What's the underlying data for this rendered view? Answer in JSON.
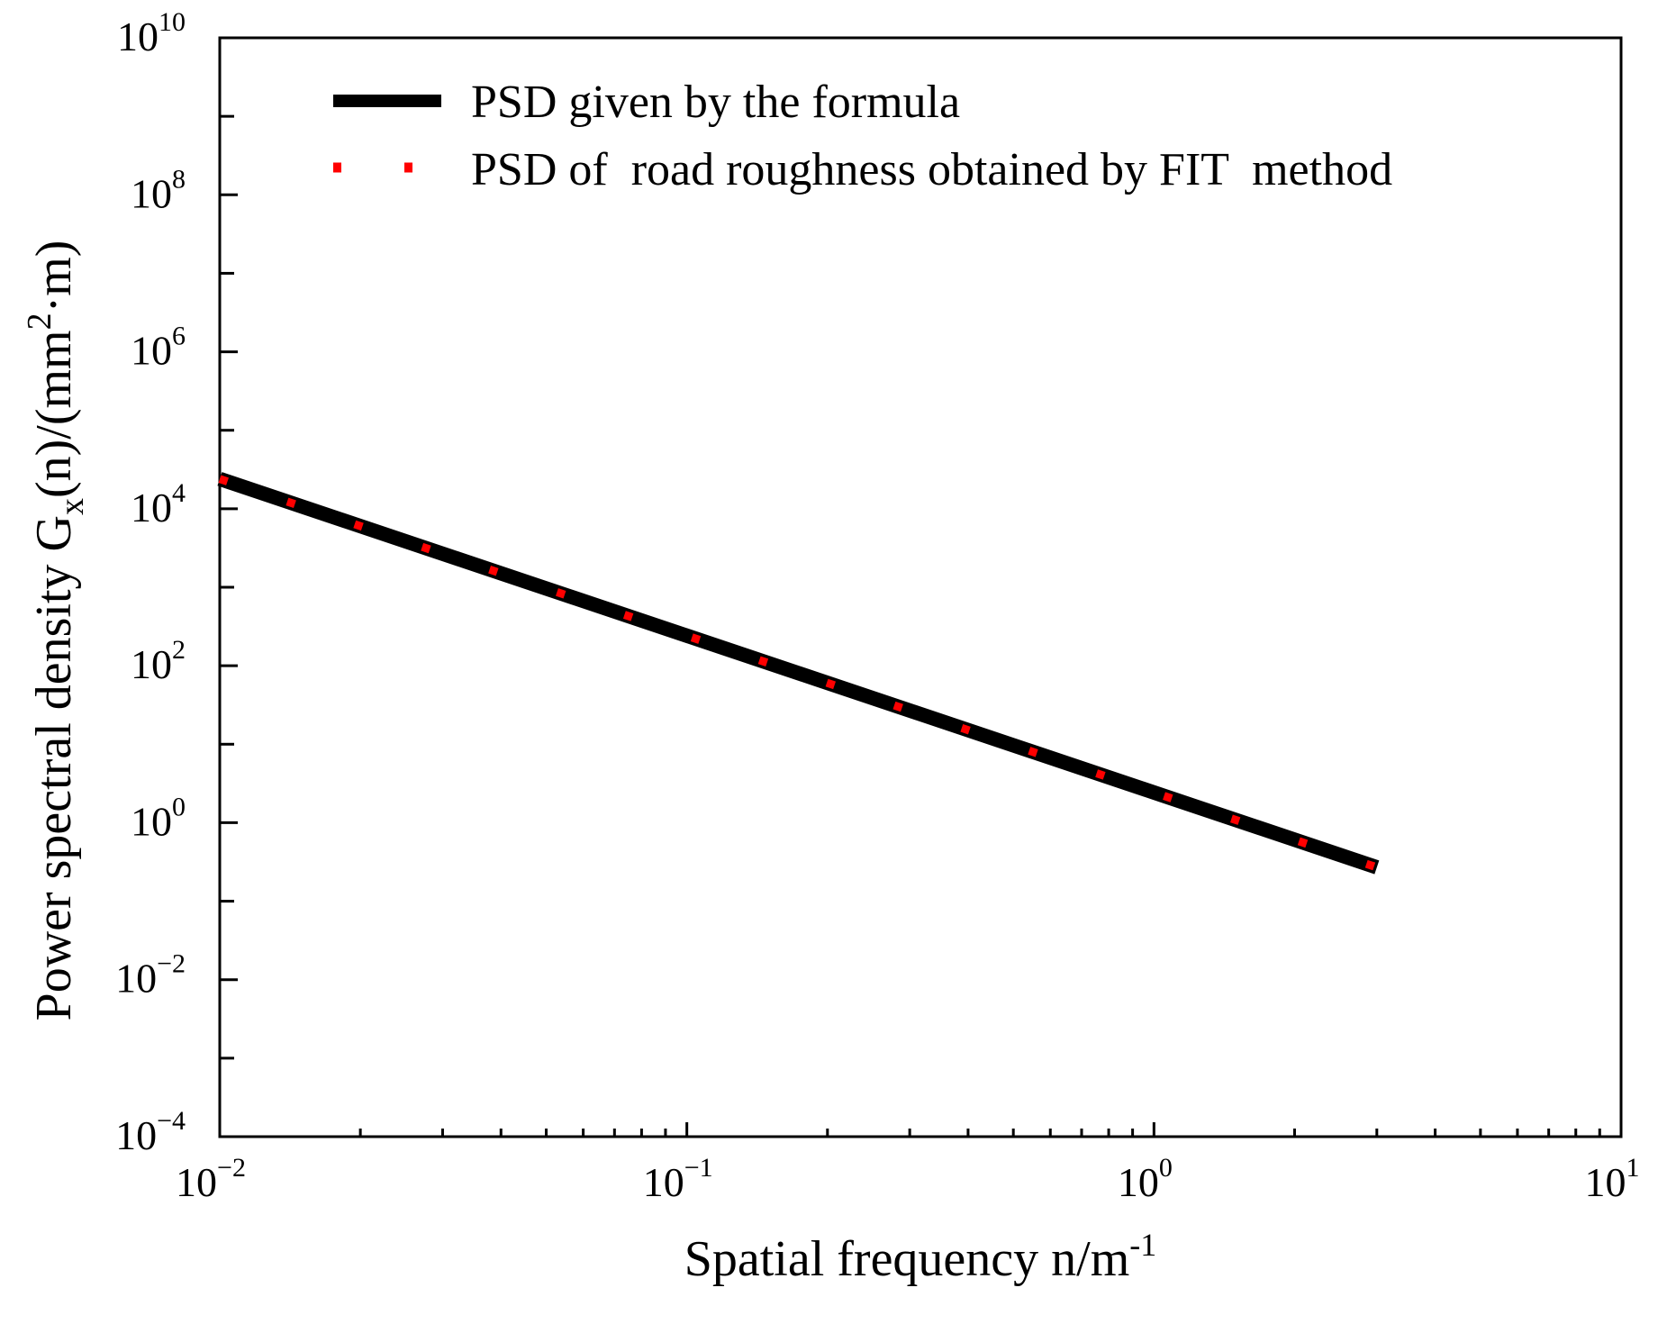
{
  "chart_data": {
    "type": "line",
    "xscale": "log",
    "yscale": "log",
    "xlim": [
      0.01,
      10
    ],
    "ylim": [
      0.0001,
      10000000000
    ],
    "x_ticks": [
      {
        "base": "10",
        "exp": "−2",
        "value": 0.01
      },
      {
        "base": "10",
        "exp": "−1",
        "value": 0.1
      },
      {
        "base": "10",
        "exp": "0",
        "value": 1
      },
      {
        "base": "10",
        "exp": "1",
        "value": 10
      }
    ],
    "y_ticks": [
      {
        "base": "10",
        "exp": "−4",
        "value": 0.0001
      },
      {
        "base": "10",
        "exp": "−2",
        "value": 0.01
      },
      {
        "base": "10",
        "exp": "0",
        "value": 1
      },
      {
        "base": "10",
        "exp": "2",
        "value": 100
      },
      {
        "base": "10",
        "exp": "4",
        "value": 10000
      },
      {
        "base": "10",
        "exp": "6",
        "value": 1000000
      },
      {
        "base": "10",
        "exp": "8",
        "value": 100000000
      },
      {
        "base": "10",
        "exp": "10",
        "value": 10000000000
      }
    ],
    "xlabel": {
      "main": "Spatial frequency n/m",
      "sup": "-1"
    },
    "ylabel": {
      "prefix": "Power spectral density G",
      "sub": "x",
      "middle": "(n)/(mm",
      "sup": "2",
      "suffix": "·m)"
    },
    "grid": false,
    "legend_position": "top-left",
    "series": [
      {
        "name": "PSD given by the formula",
        "color": "#000000",
        "style": "solid",
        "x": [
          0.01,
          3.0
        ],
        "y": [
          24000,
          0.27
        ]
      },
      {
        "name": "PSD of  road roughness obtained by FIT  method",
        "color": "#ff0000",
        "style": "dotted",
        "x": [
          0.01,
          3.0
        ],
        "y": [
          24000,
          0.27
        ]
      }
    ]
  }
}
